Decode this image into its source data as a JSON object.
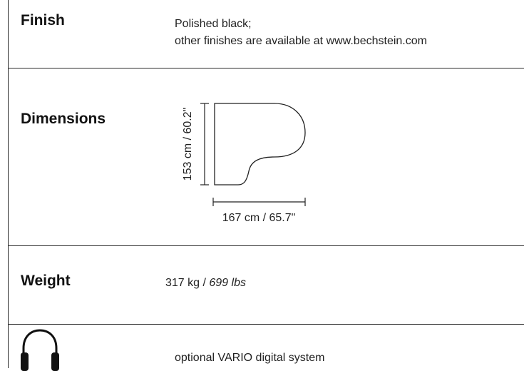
{
  "rows": {
    "finish": {
      "label": "Finish",
      "line1": "Polished black;",
      "line2": "other finishes are available at www.bechstein.com"
    },
    "dimensions": {
      "label": "Dimensions",
      "depth_text": "153 cm / 60.2\"",
      "width_text": "167 cm / 65.7\""
    },
    "weight": {
      "label": "Weight",
      "kg": "317 kg / ",
      "lbs": "699 lbs"
    },
    "digital": {
      "icon": "headphones-icon",
      "text": "optional VARIO digital system"
    }
  }
}
